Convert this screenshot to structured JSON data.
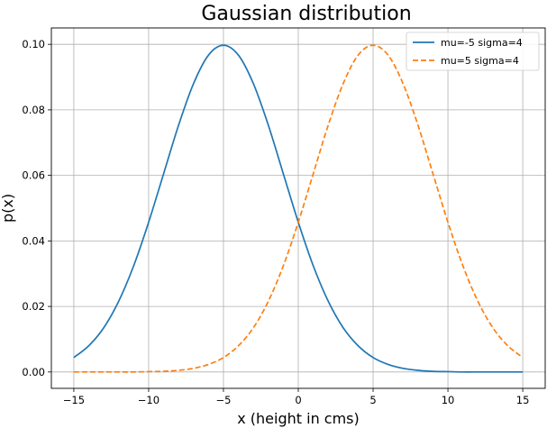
{
  "chart_data": {
    "type": "line",
    "title": "Gaussian distribution",
    "xlabel": "x (height in cms)",
    "ylabel": "p(x)",
    "xlim": [
      -16.5,
      16.5
    ],
    "ylim": [
      -0.005,
      0.105
    ],
    "x_ticks": [
      -15,
      -10,
      -5,
      0,
      5,
      10,
      15
    ],
    "x_tick_labels": [
      "−15",
      "−10",
      "−5",
      "0",
      "5",
      "10",
      "15"
    ],
    "y_ticks": [
      0.0,
      0.02,
      0.04,
      0.06,
      0.08,
      0.1
    ],
    "y_tick_labels": [
      "0.00",
      "0.02",
      "0.04",
      "0.06",
      "0.08",
      "0.10"
    ],
    "grid": true,
    "legend_position": "top-right",
    "x": [
      -15,
      -14,
      -13,
      -12,
      -11,
      -10,
      -9,
      -8,
      -7,
      -6,
      -5,
      -4,
      -3,
      -2,
      -1,
      0,
      1,
      2,
      3,
      4,
      5,
      6,
      7,
      8,
      9,
      10,
      11,
      12,
      13,
      14,
      15
    ],
    "series": [
      {
        "name": "mu=-5 sigma=4",
        "color": "#1f77b4",
        "dash": "solid",
        "values": [
          0.0044,
          0.008,
          0.0135,
          0.0216,
          0.0324,
          0.0457,
          0.0605,
          0.0753,
          0.088,
          0.0967,
          0.0997,
          0.0967,
          0.088,
          0.0753,
          0.0605,
          0.0457,
          0.0324,
          0.0216,
          0.0135,
          0.008,
          0.0044,
          0.0023,
          0.0011,
          0.0005,
          0.0002,
          0.0001,
          0.0,
          0.0,
          0.0,
          0.0,
          0.0
        ]
      },
      {
        "name": "mu=5 sigma=4",
        "color": "#ff7f0e",
        "dash": "dashed",
        "values": [
          0.0,
          0.0,
          0.0,
          0.0,
          0.0,
          0.0001,
          0.0002,
          0.0005,
          0.0011,
          0.0023,
          0.0044,
          0.008,
          0.0135,
          0.0216,
          0.0324,
          0.0457,
          0.0605,
          0.0753,
          0.088,
          0.0967,
          0.0997,
          0.0967,
          0.088,
          0.0753,
          0.0605,
          0.0457,
          0.0324,
          0.0216,
          0.0135,
          0.008,
          0.0044
        ]
      }
    ]
  }
}
